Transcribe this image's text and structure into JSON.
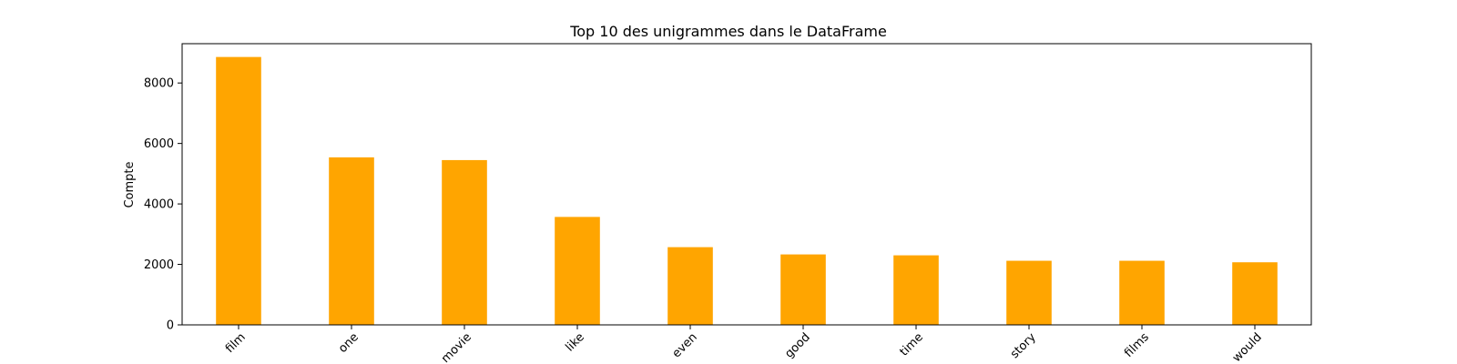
{
  "chart_data": {
    "type": "bar",
    "title": "Top 10 des unigrammes dans le DataFrame",
    "xlabel": "",
    "ylabel": "Compte",
    "categories": [
      "film",
      "one",
      "movie",
      "like",
      "even",
      "good",
      "time",
      "story",
      "films",
      "would"
    ],
    "values": [
      8860,
      5540,
      5450,
      3570,
      2570,
      2330,
      2300,
      2120,
      2120,
      2070
    ],
    "ylim": [
      0,
      9300
    ],
    "yticks": [
      0,
      2000,
      4000,
      6000,
      8000
    ],
    "bar_color": "#ffa500",
    "grid": false,
    "legend": "none"
  }
}
